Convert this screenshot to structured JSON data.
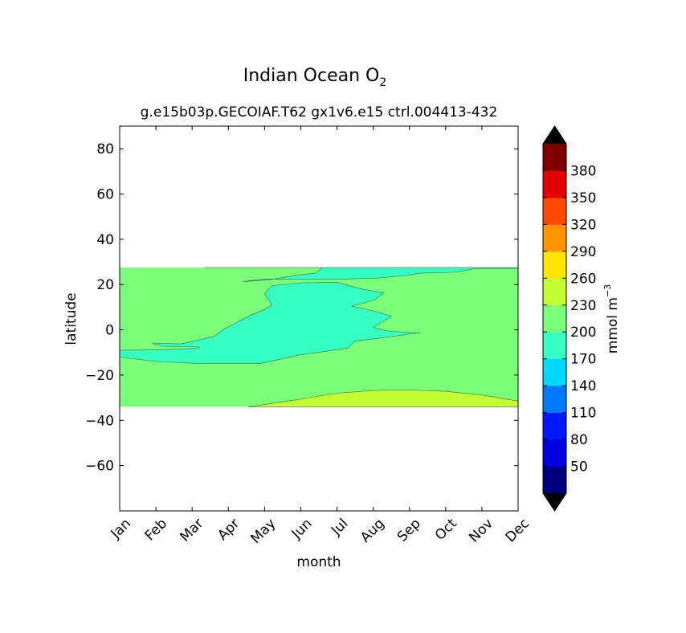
{
  "chart_data": {
    "type": "heatmap",
    "title": "Indian Ocean O",
    "title_subscript": "2",
    "subtitle": "g.e15b03p.GECOIAF.T62 gx1v6.e15 ctrl.004413-432",
    "xlabel": "month",
    "ylabel": "latitude",
    "x_categories": [
      "Jan",
      "Feb",
      "Mar",
      "Apr",
      "May",
      "Jun",
      "Jul",
      "Aug",
      "Sep",
      "Oct",
      "Nov",
      "Dec"
    ],
    "xlim": [
      1,
      12
    ],
    "ylim": [
      -80,
      90
    ],
    "y_ticks": [
      80,
      60,
      40,
      20,
      0,
      -20,
      -40,
      -60
    ],
    "y_tick_labels": [
      "80",
      "60",
      "40",
      "20",
      "0",
      "−20",
      "−40",
      "−60"
    ],
    "data_lat_range": [
      -34,
      27.5
    ],
    "background_class": {
      "range": [
        200,
        230
      ],
      "color": "#7bff7b"
    },
    "regions": [
      {
        "name": "170-200 low oxygen tongue",
        "range": [
          170,
          200
        ],
        "color": "#36ffc4",
        "outline": [
          [
            3.35,
            27.5
          ],
          [
            12.0,
            27.5
          ],
          [
            12.0,
            27.0
          ],
          [
            11.1,
            27.0
          ],
          [
            10.8,
            27.0
          ],
          [
            10.45,
            26.0
          ],
          [
            10.2,
            25.4
          ],
          [
            9.3,
            25.0
          ],
          [
            8.9,
            24.0
          ],
          [
            8.1,
            22.8
          ],
          [
            6.8,
            22.3
          ],
          [
            5.8,
            22.3
          ],
          [
            5.0,
            22.5
          ],
          [
            4.4,
            21.3
          ],
          [
            5.1,
            22.0
          ],
          [
            5.9,
            24.2
          ],
          [
            6.4,
            25.0
          ],
          [
            6.5,
            26.2
          ],
          [
            6.6,
            27.5
          ],
          [
            7.5,
            27.5
          ]
        ]
      },
      {
        "name": "170-200 main body",
        "range": [
          170,
          200
        ],
        "color": "#36ffc4",
        "outline": [
          [
            1.0,
            -9.0
          ],
          [
            1.6,
            -9.0
          ],
          [
            3.2,
            -8.2
          ],
          [
            3.2,
            -7.6
          ],
          [
            2.2,
            -7.2
          ],
          [
            1.9,
            -6.0
          ],
          [
            2.7,
            -6.2
          ],
          [
            3.6,
            -3.0
          ],
          [
            3.9,
            0.5
          ],
          [
            4.6,
            6.3
          ],
          [
            5.0,
            9.0
          ],
          [
            5.2,
            11.0
          ],
          [
            5.0,
            16.0
          ],
          [
            5.2,
            19.5
          ],
          [
            6.0,
            20.8
          ],
          [
            7.0,
            21.0
          ],
          [
            7.7,
            18.0
          ],
          [
            8.3,
            16.2
          ],
          [
            8.0,
            13.0
          ],
          [
            7.4,
            10.5
          ],
          [
            8.1,
            8.0
          ],
          [
            8.5,
            6.0
          ],
          [
            8.0,
            1.0
          ],
          [
            8.4,
            -0.5
          ],
          [
            9.25,
            -1.5
          ],
          [
            9.3,
            -1.2
          ],
          [
            8.5,
            -3.0
          ],
          [
            8.0,
            -4.0
          ],
          [
            7.5,
            -5.0
          ],
          [
            7.3,
            -8.0
          ],
          [
            6.9,
            -9.0
          ],
          [
            6.0,
            -11.0
          ],
          [
            4.9,
            -14.8
          ],
          [
            3.1,
            -14.8
          ],
          [
            2.0,
            -14.0
          ],
          [
            1.0,
            -12.0
          ]
        ]
      },
      {
        "name": "230-260 southern band",
        "range": [
          230,
          260
        ],
        "color": "#c4ff36",
        "outline": [
          [
            4.55,
            -34.0
          ],
          [
            12.0,
            -34.0
          ],
          [
            12.0,
            -31.5
          ],
          [
            11.0,
            -28.8
          ],
          [
            10.0,
            -27.2
          ],
          [
            9.0,
            -26.6
          ],
          [
            8.0,
            -26.8
          ],
          [
            7.0,
            -28.0
          ],
          [
            6.0,
            -30.6
          ],
          [
            5.0,
            -33.0
          ]
        ]
      }
    ],
    "colorbar": {
      "label": "mmol m",
      "label_superscript": "−3",
      "levels": [
        20,
        50,
        80,
        110,
        140,
        170,
        200,
        230,
        260,
        290,
        320,
        350,
        380,
        410
      ],
      "tick_labels": [
        "50",
        "80",
        "110",
        "140",
        "170",
        "200",
        "230",
        "260",
        "290",
        "320",
        "350",
        "380"
      ],
      "colors": [
        "#00007f",
        "#0000e0",
        "#0019ff",
        "#0079ff",
        "#00d9ff",
        "#36ffc4",
        "#7bff7b",
        "#c4ff36",
        "#ffe500",
        "#ff9400",
        "#ff4800",
        "#e30000",
        "#7f0000"
      ],
      "under_color": "#000000",
      "over_color": "#000000"
    }
  }
}
